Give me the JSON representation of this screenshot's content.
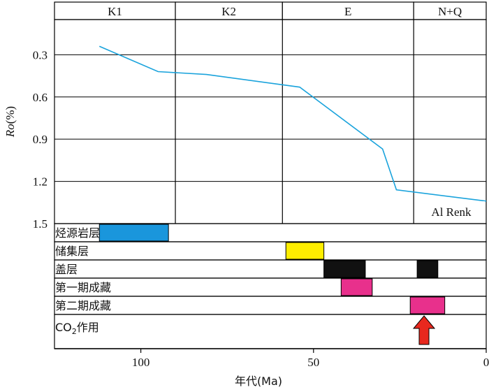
{
  "chart_data": {
    "type": "line",
    "xlabel": "年代(Ma)",
    "ylabel_main": "Ro",
    "ylabel_unit": "(%)",
    "xlim": [
      125,
      0
    ],
    "ylim": [
      0.05,
      1.5
    ],
    "x_ticks": [
      100,
      50,
      0
    ],
    "x_tick_labels": [
      "100",
      "50",
      "0"
    ],
    "y_ticks": [
      0.3,
      0.6,
      0.9,
      1.2,
      1.5
    ],
    "y_tick_labels": [
      "0.3",
      "0.6",
      "0.9",
      "1.2",
      "1.5"
    ],
    "periods": [
      {
        "label": "K1",
        "from": 125,
        "to": 90
      },
      {
        "label": "K2",
        "from": 90,
        "to": 59
      },
      {
        "label": "E",
        "from": 59,
        "to": 21
      },
      {
        "label": "N+Q",
        "from": 21,
        "to": 0
      }
    ],
    "series": [
      {
        "name": "Al Renk",
        "color": "#1aa3dc",
        "x": [
          112,
          95,
          81,
          54,
          30,
          26,
          0
        ],
        "y": [
          0.24,
          0.42,
          0.44,
          0.53,
          0.97,
          1.26,
          1.34
        ]
      }
    ],
    "events": [
      {
        "label": "烃源岩层",
        "bars": [
          {
            "from": 112,
            "to": 92,
            "color": "#1a96dc"
          }
        ]
      },
      {
        "label": "储集层",
        "bars": [
          {
            "from": 58,
            "to": 47,
            "color": "#ffee00"
          }
        ]
      },
      {
        "label": "盖层",
        "bars": [
          {
            "from": 47,
            "to": 35,
            "color": "#111111"
          },
          {
            "from": 20,
            "to": 14,
            "color": "#111111"
          }
        ]
      },
      {
        "label": "第一期成藏",
        "bars": [
          {
            "from": 42,
            "to": 33,
            "color": "#e8308c"
          }
        ]
      },
      {
        "label": "第二期成藏",
        "bars": [
          {
            "from": 22,
            "to": 12,
            "color": "#e8308c"
          }
        ]
      },
      {
        "label_main": "CO",
        "label_sub": "2",
        "label_tail": "作用",
        "arrow_at": 18,
        "arrow_color": "#e8281e"
      }
    ]
  }
}
